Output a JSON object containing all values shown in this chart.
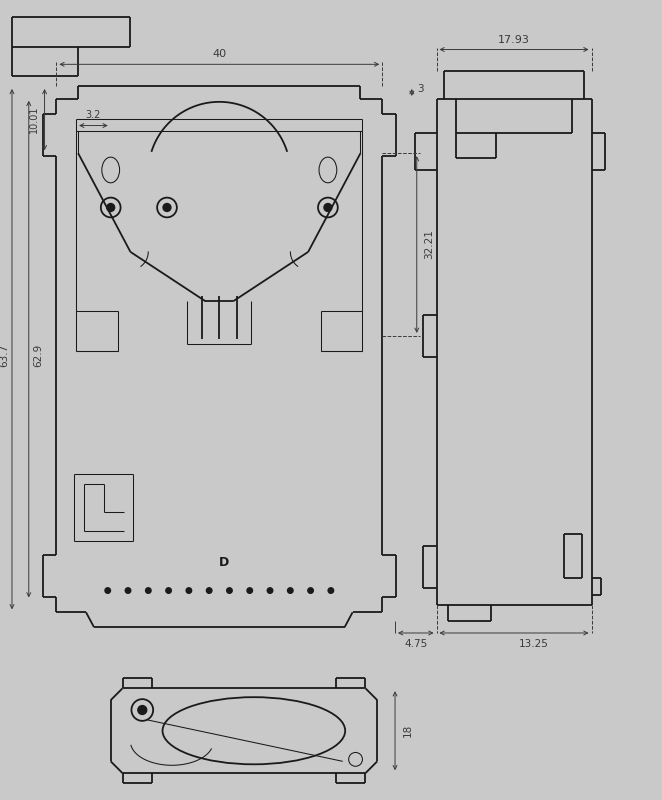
{
  "bg_color": "#c9c9c9",
  "line_color": "#1a1a1a",
  "dim_color": "#3a3a3a",
  "lw": 1.3,
  "lw_t": 0.75,
  "lw_d": 0.7,
  "fig_w": 6.62,
  "fig_h": 8.0,
  "xlim": [
    0,
    6.62
  ],
  "ylim": [
    0,
    8.0
  ],
  "dims": {
    "w40": "40",
    "h3": "3",
    "h1001": "10.01",
    "w32": "3.2",
    "h3221": "32.21",
    "w1793": "17.93",
    "h637": "63.7",
    "h629": "62.9",
    "d475": "4.75",
    "d1325": "13.25",
    "h18": "18"
  }
}
